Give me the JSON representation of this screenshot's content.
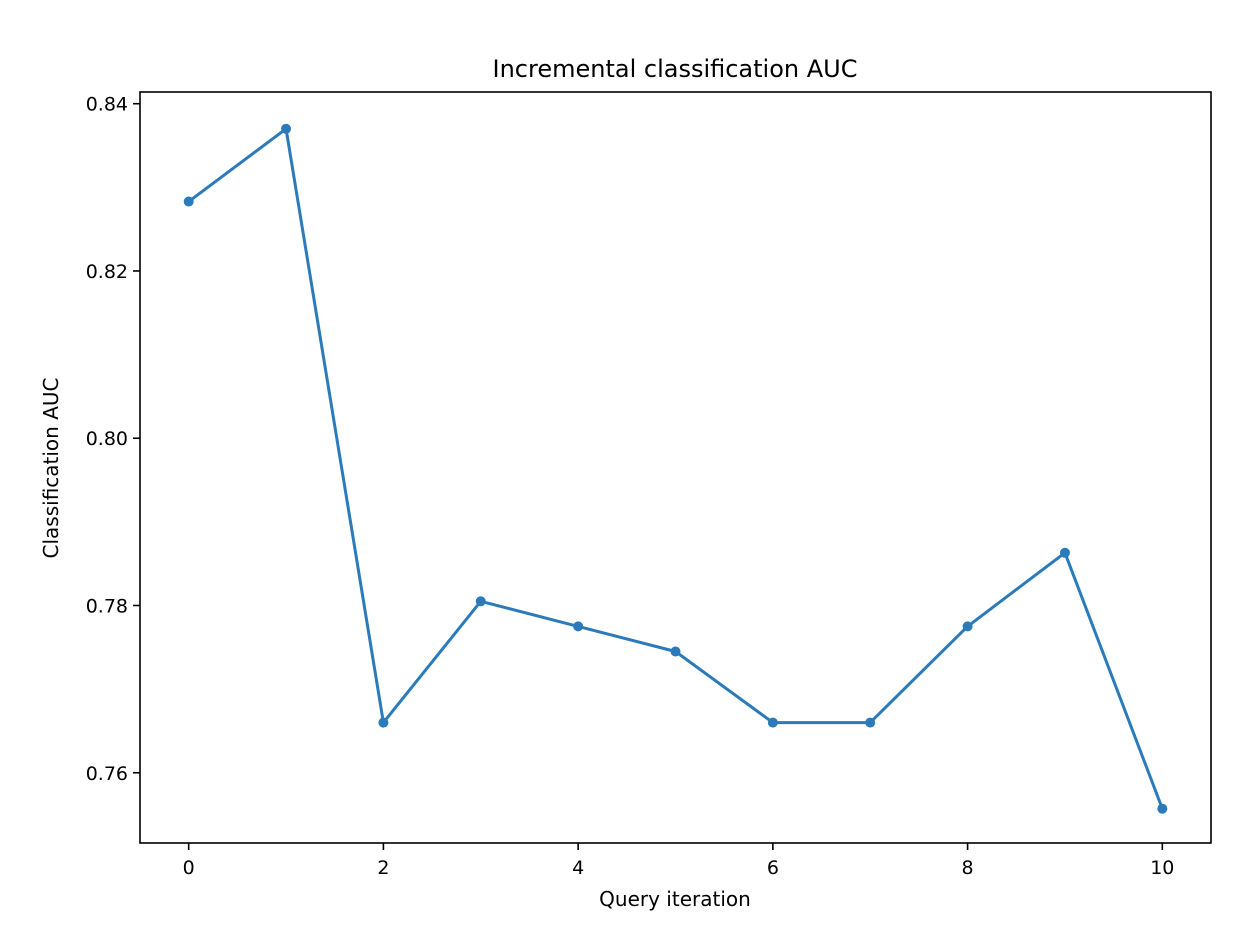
{
  "chart_data": {
    "type": "line",
    "title": "Incremental classification AUC",
    "xlabel": "Query iteration",
    "ylabel": "Classification AUC",
    "x": [
      0,
      1,
      2,
      3,
      4,
      5,
      6,
      7,
      8,
      9,
      10
    ],
    "series": [
      {
        "values": [
          0.8283,
          0.837,
          0.766,
          0.7805,
          0.7775,
          0.7745,
          0.766,
          0.766,
          0.7775,
          0.7863,
          0.7557
        ],
        "color": "#2b7bba"
      }
    ],
    "xlim": [
      -0.5,
      10.5
    ],
    "ylim": [
      0.7516,
      0.8414
    ],
    "xticks": [
      0,
      2,
      4,
      6,
      8,
      10
    ],
    "xtick_labels": [
      "0",
      "2",
      "4",
      "6",
      "8",
      "10"
    ],
    "yticks": [
      0.76,
      0.78,
      0.8,
      0.82,
      0.84
    ],
    "ytick_labels": [
      "0.76",
      "0.78",
      "0.80",
      "0.82",
      "0.84"
    ],
    "grid": false,
    "legend": "none"
  }
}
